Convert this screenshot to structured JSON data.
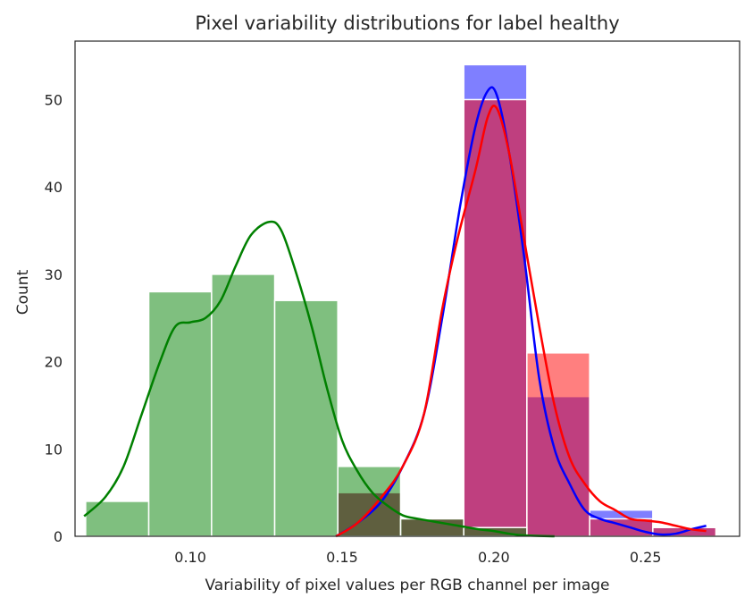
{
  "chart_data": {
    "type": "histogram",
    "title": "Pixel variability distributions for label healthy",
    "xlabel": "Variability of pixel values per RGB channel per image",
    "ylabel": "Count",
    "xlim": [
      0.062,
      0.281
    ],
    "ylim": [
      0,
      56.7
    ],
    "x_ticks": [
      0.1,
      0.15,
      0.2,
      0.25
    ],
    "x_tick_labels": [
      "0.10",
      "0.15",
      "0.20",
      "0.25"
    ],
    "y_ticks": [
      0,
      10,
      20,
      30,
      40,
      50
    ],
    "y_tick_labels": [
      "0",
      "10",
      "20",
      "30",
      "40",
      "50"
    ],
    "grid": false,
    "legend": "none",
    "bin_edges": [
      0.0655,
      0.0863,
      0.107,
      0.1278,
      0.1486,
      0.1693,
      0.1901,
      0.2109,
      0.2316,
      0.2524,
      0.2732
    ],
    "series": [
      {
        "color": "#0000ff",
        "bar_alpha": 0.5,
        "counts": [
          0,
          0,
          0,
          0,
          5,
          2,
          54,
          16,
          3,
          1
        ],
        "kde": [
          [
            0.148,
            0
          ],
          [
            0.155,
            1.5
          ],
          [
            0.163,
            4
          ],
          [
            0.17,
            8
          ],
          [
            0.177,
            14
          ],
          [
            0.183,
            25
          ],
          [
            0.189,
            38
          ],
          [
            0.194,
            47
          ],
          [
            0.198,
            51
          ],
          [
            0.201,
            50.5
          ],
          [
            0.205,
            44
          ],
          [
            0.21,
            32
          ],
          [
            0.215,
            18
          ],
          [
            0.22,
            10
          ],
          [
            0.225,
            6
          ],
          [
            0.23,
            3
          ],
          [
            0.235,
            2
          ],
          [
            0.24,
            1.5
          ],
          [
            0.245,
            1
          ],
          [
            0.25,
            0.5
          ],
          [
            0.255,
            0.2
          ],
          [
            0.26,
            0.3
          ],
          [
            0.265,
            0.8
          ],
          [
            0.27,
            1.2
          ]
        ]
      },
      {
        "color": "#ff0000",
        "bar_alpha": 0.5,
        "counts": [
          0,
          0,
          0,
          0,
          5,
          2,
          50,
          21,
          2,
          1
        ],
        "kde": [
          [
            0.148,
            0
          ],
          [
            0.155,
            1.5
          ],
          [
            0.163,
            4.5
          ],
          [
            0.17,
            8
          ],
          [
            0.177,
            14
          ],
          [
            0.183,
            26
          ],
          [
            0.188,
            34
          ],
          [
            0.194,
            42
          ],
          [
            0.198,
            48
          ],
          [
            0.201,
            49
          ],
          [
            0.205,
            44
          ],
          [
            0.21,
            34
          ],
          [
            0.215,
            24
          ],
          [
            0.22,
            15
          ],
          [
            0.225,
            9
          ],
          [
            0.23,
            6
          ],
          [
            0.235,
            4
          ],
          [
            0.24,
            3
          ],
          [
            0.245,
            2
          ],
          [
            0.25,
            1.8
          ],
          [
            0.255,
            1.6
          ],
          [
            0.26,
            1.2
          ],
          [
            0.265,
            0.8
          ],
          [
            0.27,
            0.6
          ]
        ]
      },
      {
        "color": "#008000",
        "bar_alpha": 0.5,
        "counts": [
          4,
          28,
          30,
          27,
          8,
          2,
          1,
          0,
          0,
          0
        ],
        "kde": [
          [
            0.065,
            2.3
          ],
          [
            0.072,
            4.5
          ],
          [
            0.078,
            8
          ],
          [
            0.084,
            14
          ],
          [
            0.09,
            20
          ],
          [
            0.095,
            24
          ],
          [
            0.1,
            24.5
          ],
          [
            0.105,
            25
          ],
          [
            0.11,
            27
          ],
          [
            0.115,
            31
          ],
          [
            0.12,
            34.5
          ],
          [
            0.126,
            36
          ],
          [
            0.13,
            35
          ],
          [
            0.135,
            30
          ],
          [
            0.14,
            24
          ],
          [
            0.145,
            17
          ],
          [
            0.15,
            11
          ],
          [
            0.155,
            7.5
          ],
          [
            0.16,
            5
          ],
          [
            0.165,
            3.5
          ],
          [
            0.17,
            2.4
          ],
          [
            0.175,
            2
          ],
          [
            0.18,
            1.7
          ],
          [
            0.185,
            1.4
          ],
          [
            0.19,
            1.1
          ],
          [
            0.195,
            0.8
          ],
          [
            0.2,
            0.6
          ],
          [
            0.205,
            0.3
          ],
          [
            0.21,
            0.1
          ],
          [
            0.22,
            0
          ]
        ]
      }
    ]
  }
}
